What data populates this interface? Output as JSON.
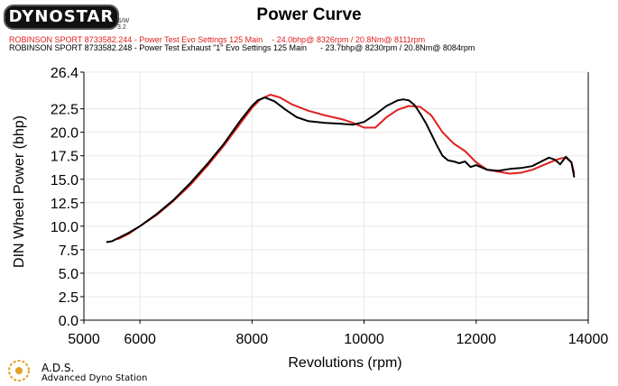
{
  "brand": {
    "logo_text": "DYNOSTAR",
    "logo_suffix": "S/W 3.2"
  },
  "header": {
    "title": "Power Curve",
    "run1": "ROBINSON SPORT 8733582.244 - Power Test Evo Settings 125 Main    - 24.0bhp@ 8326rpm / 20.8Nm@ 8111rpm",
    "run2": "ROBINSON SPORT 8733582.248 - Power Test Exhaust \"1\" Evo Settings 125 Main      - 23.7bhp@ 8230rpm / 20.8Nm@ 8084rpm"
  },
  "footer": {
    "ads": "A.D.S.",
    "name": "Advanced Dyno Station"
  },
  "colors": {
    "run1": "#e02020",
    "run2": "#000000",
    "grid": "#e8e8e8",
    "axis": "#000000"
  },
  "chart_data": {
    "type": "line",
    "title": "Power Curve",
    "xlabel": "Revolutions (rpm)",
    "ylabel": "DIN Wheel Power (bhp)",
    "xlim": [
      5000,
      14000
    ],
    "ylim": [
      0,
      26.4
    ],
    "xticks": [
      "5000",
      "6000",
      "8000",
      "10000",
      "12000",
      "14000"
    ],
    "yticks": [
      "0.0",
      "2.5",
      "5.0",
      "7.5",
      "10.0",
      "12.5",
      "15.0",
      "17.5",
      "20.0",
      "22.5",
      "26.4"
    ],
    "grid": true,
    "series": [
      {
        "name": "ROBINSON SPORT 8733582.244",
        "color": "#e02020",
        "x": [
          5600,
          5800,
          6000,
          6300,
          6600,
          6900,
          7200,
          7500,
          7800,
          8000,
          8150,
          8326,
          8500,
          8700,
          9000,
          9300,
          9600,
          9800,
          10000,
          10200,
          10400,
          10600,
          10800,
          11000,
          11200,
          11400,
          11600,
          11800,
          12000,
          12200,
          12400,
          12600,
          12800,
          13000,
          13200,
          13400,
          13500,
          13600,
          13700,
          13750
        ],
        "y": [
          8.6,
          9.2,
          10.0,
          11.2,
          12.7,
          14.4,
          16.4,
          18.6,
          21.0,
          22.6,
          23.5,
          24.0,
          23.7,
          23.0,
          22.3,
          21.8,
          21.4,
          21.0,
          20.5,
          20.5,
          21.6,
          22.4,
          22.8,
          22.7,
          21.8,
          20.0,
          18.8,
          18.0,
          16.8,
          16.0,
          15.8,
          15.6,
          15.7,
          16.0,
          16.5,
          17.0,
          17.2,
          17.3,
          16.8,
          15.6
        ]
      },
      {
        "name": "ROBINSON SPORT 8733582.248",
        "color": "#000000",
        "x": [
          5400,
          5500,
          5600,
          5800,
          6000,
          6300,
          6600,
          6900,
          7200,
          7500,
          7800,
          8000,
          8100,
          8230,
          8400,
          8600,
          8800,
          9000,
          9300,
          9600,
          9800,
          10000,
          10200,
          10400,
          10600,
          10700,
          10800,
          10900,
          11000,
          11100,
          11200,
          11300,
          11400,
          11500,
          11600,
          11700,
          11800,
          11900,
          12000,
          12200,
          12400,
          12600,
          12800,
          13000,
          13200,
          13300,
          13400,
          13500,
          13600,
          13700,
          13750
        ],
        "y": [
          8.3,
          8.4,
          8.7,
          9.3,
          10.0,
          11.3,
          12.8,
          14.6,
          16.6,
          18.8,
          21.3,
          22.8,
          23.4,
          23.7,
          23.3,
          22.4,
          21.6,
          21.2,
          21.0,
          20.9,
          20.8,
          21.1,
          21.9,
          22.8,
          23.4,
          23.5,
          23.4,
          22.9,
          22.0,
          21.0,
          19.8,
          18.6,
          17.5,
          17.0,
          16.9,
          16.7,
          16.9,
          16.3,
          16.5,
          16.0,
          15.9,
          16.1,
          16.2,
          16.4,
          17.0,
          17.3,
          17.1,
          16.6,
          17.4,
          16.8,
          15.2
        ]
      }
    ]
  }
}
